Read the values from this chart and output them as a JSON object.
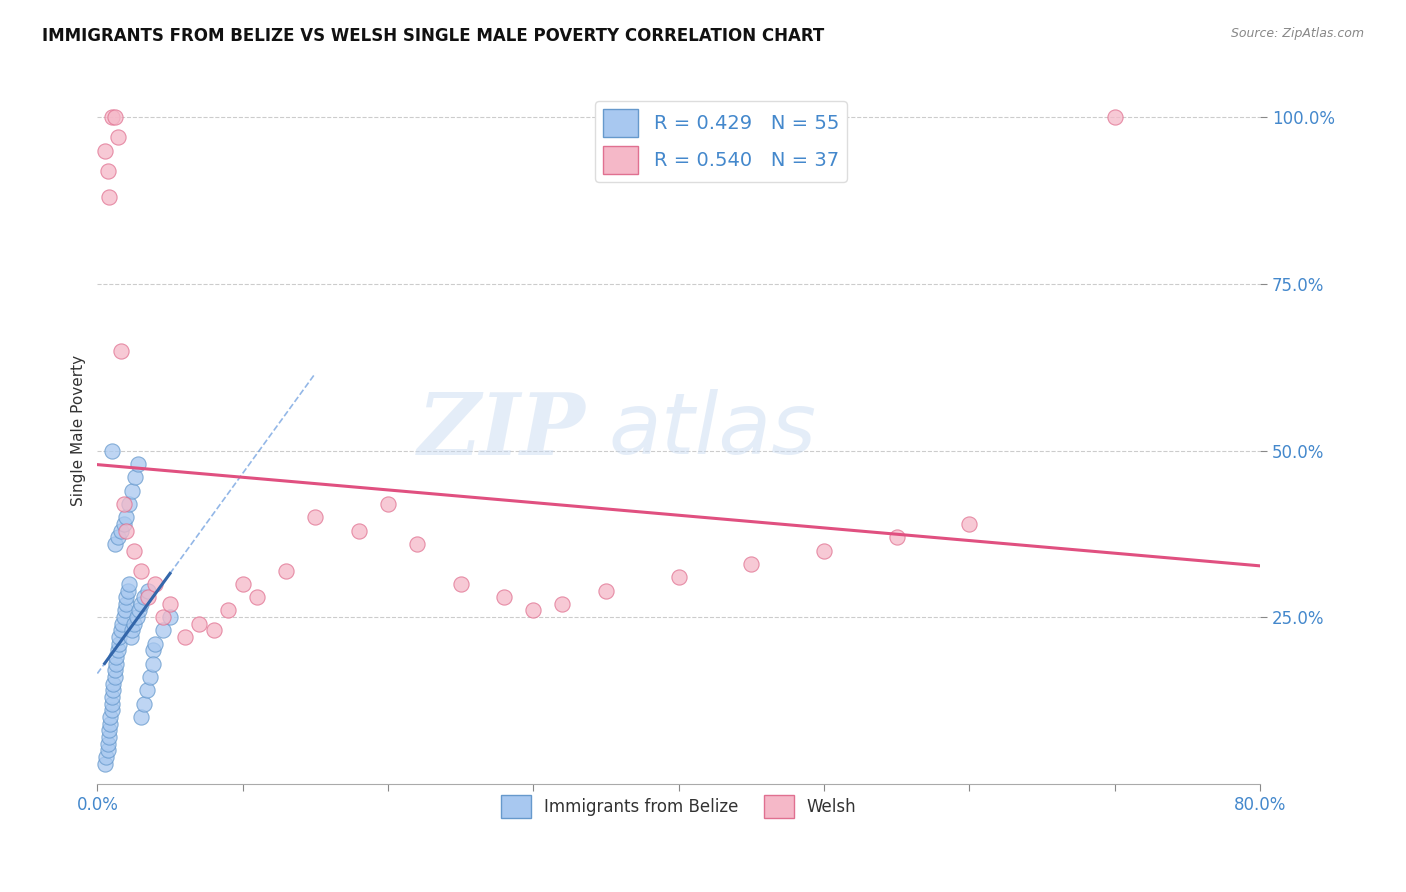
{
  "title": "IMMIGRANTS FROM BELIZE VS WELSH SINGLE MALE POVERTY CORRELATION CHART",
  "source": "Source: ZipAtlas.com",
  "ylabel": "Single Male Poverty",
  "legend1_label": "Immigrants from Belize",
  "legend2_label": "Welsh",
  "R1": 0.429,
  "N1": 55,
  "R2": 0.54,
  "N2": 37,
  "color_blue_fill": "#A8C8F0",
  "color_blue_edge": "#6699CC",
  "color_blue_line": "#3366AA",
  "color_pink_fill": "#F5B8C8",
  "color_pink_edge": "#E07090",
  "color_pink_line": "#E05080",
  "color_dashed": "#6699DD",
  "watermark_zip": "ZIP",
  "watermark_atlas": "atlas",
  "blue_x": [
    0.5,
    0.6,
    0.7,
    0.7,
    0.8,
    0.8,
    0.9,
    0.9,
    1.0,
    1.0,
    1.0,
    1.1,
    1.1,
    1.2,
    1.2,
    1.3,
    1.3,
    1.4,
    1.5,
    1.5,
    1.6,
    1.7,
    1.8,
    1.9,
    2.0,
    2.0,
    2.1,
    2.2,
    2.3,
    2.4,
    2.5,
    2.7,
    2.9,
    3.0,
    3.2,
    3.5,
    3.8,
    4.0,
    4.5,
    5.0,
    1.0,
    1.2,
    1.4,
    1.6,
    1.8,
    2.0,
    2.2,
    2.4,
    2.6,
    2.8,
    3.0,
    3.2,
    3.4,
    3.6,
    3.8
  ],
  "blue_y": [
    3.0,
    4.0,
    5.0,
    6.0,
    7.0,
    8.0,
    9.0,
    10.0,
    11.0,
    12.0,
    13.0,
    14.0,
    15.0,
    16.0,
    17.0,
    18.0,
    19.0,
    20.0,
    21.0,
    22.0,
    23.0,
    24.0,
    25.0,
    26.0,
    27.0,
    28.0,
    29.0,
    30.0,
    22.0,
    23.0,
    24.0,
    25.0,
    26.0,
    27.0,
    28.0,
    29.0,
    20.0,
    21.0,
    23.0,
    25.0,
    50.0,
    36.0,
    37.0,
    38.0,
    39.0,
    40.0,
    42.0,
    44.0,
    46.0,
    48.0,
    10.0,
    12.0,
    14.0,
    16.0,
    18.0
  ],
  "pink_x": [
    0.5,
    0.7,
    0.8,
    1.0,
    1.2,
    1.4,
    1.6,
    1.8,
    2.0,
    2.5,
    3.0,
    3.5,
    4.0,
    4.5,
    5.0,
    6.0,
    7.0,
    8.0,
    9.0,
    10.0,
    11.0,
    13.0,
    15.0,
    18.0,
    20.0,
    22.0,
    25.0,
    28.0,
    30.0,
    32.0,
    35.0,
    40.0,
    45.0,
    50.0,
    55.0,
    60.0,
    70.0
  ],
  "pink_y": [
    95.0,
    92.0,
    88.0,
    100.0,
    100.0,
    97.0,
    65.0,
    42.0,
    38.0,
    35.0,
    32.0,
    28.0,
    30.0,
    25.0,
    27.0,
    22.0,
    24.0,
    23.0,
    26.0,
    30.0,
    28.0,
    32.0,
    40.0,
    38.0,
    42.0,
    36.0,
    30.0,
    28.0,
    26.0,
    27.0,
    29.0,
    31.0,
    33.0,
    35.0,
    37.0,
    39.0,
    100.0
  ]
}
